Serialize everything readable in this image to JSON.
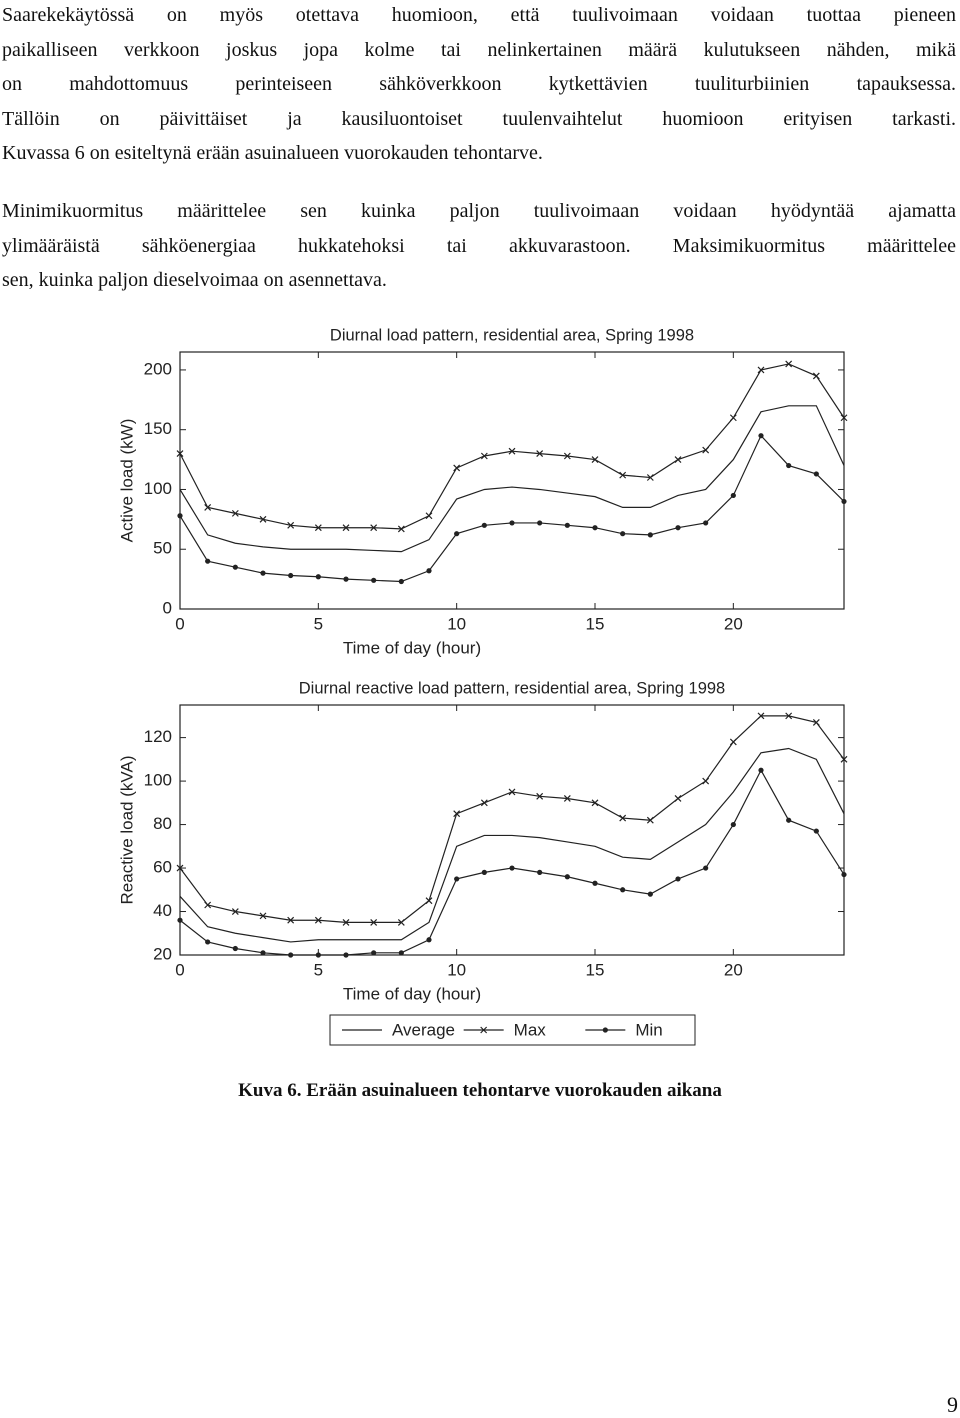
{
  "paragraphs": [
    [
      "Saarekekäytössä on myös otettava huomioon, että tuulivoimaan voidaan tuottaa pieneen",
      "paikalliseen verkkoon joskus jopa kolme tai nelinkertainen määrä kulutukseen nähden, mikä",
      "on mahdottomuus perinteiseen sähköverkkoon kytkettävien tuuliturbiinien tapauksessa.",
      "Tällöin on päivittäiset ja kausiluontoiset tuulenvaihtelut huomioon erityisen tarkasti.",
      "Kuvassa 6 on esiteltynä erään asuinalueen vuorokauden tehontarve."
    ],
    [
      "Minimikuormitus määrittelee sen kuinka paljon tuulivoimaan voidaan hyödyntää ajamatta",
      "ylimääräistä sähköenergiaa hukkatehoksi tai akkuvarastoon. Maksimikuormitus määrittelee",
      "sen, kuinka paljon dieselvoimaa on asennettava."
    ]
  ],
  "chart_data": [
    {
      "type": "line",
      "title": "Diurnal load pattern, residential area, Spring 1998",
      "x_label": "Time of day (hour)",
      "y_label": "Active load (kW)",
      "x": [
        0,
        1,
        2,
        3,
        4,
        5,
        6,
        7,
        8,
        9,
        10,
        11,
        12,
        13,
        14,
        15,
        16,
        17,
        18,
        19,
        20,
        21,
        22,
        23,
        24
      ],
      "xlim": [
        0,
        24
      ],
      "xticks": [
        0,
        5,
        10,
        15,
        20
      ],
      "ylim": [
        0,
        215
      ],
      "yticks": [
        0,
        50,
        100,
        150,
        200
      ],
      "series": [
        {
          "color": "#222222",
          "marker": "none",
          "values": [
            100,
            62,
            55,
            52,
            50,
            50,
            50,
            49,
            48,
            58,
            92,
            100,
            102,
            100,
            97,
            94,
            85,
            85,
            95,
            100,
            125,
            165,
            170,
            170,
            120
          ]
        },
        {
          "color": "#222222",
          "marker": "x",
          "values": [
            130,
            85,
            80,
            75,
            70,
            68,
            68,
            68,
            67,
            78,
            118,
            128,
            132,
            130,
            128,
            125,
            112,
            110,
            125,
            133,
            160,
            200,
            205,
            195,
            160
          ]
        },
        {
          "color": "#222222",
          "marker": "dot",
          "values": [
            78,
            40,
            35,
            30,
            28,
            27,
            25,
            24,
            23,
            32,
            63,
            70,
            72,
            72,
            70,
            68,
            63,
            62,
            68,
            72,
            95,
            145,
            120,
            113,
            90
          ]
        }
      ]
    },
    {
      "type": "line",
      "title": "Diurnal reactive load pattern, residential area, Spring 1998",
      "x_label": "Time of day (hour)",
      "y_label": "Reactive load (kVA)",
      "x": [
        0,
        1,
        2,
        3,
        4,
        5,
        6,
        7,
        8,
        9,
        10,
        11,
        12,
        13,
        14,
        15,
        16,
        17,
        18,
        19,
        20,
        21,
        22,
        23,
        24
      ],
      "xlim": [
        0,
        24
      ],
      "xticks": [
        0,
        5,
        10,
        15,
        20
      ],
      "ylim": [
        20,
        135
      ],
      "yticks": [
        20,
        40,
        60,
        80,
        100,
        120
      ],
      "legend": "bottom",
      "series": [
        {
          "name": "Average",
          "color": "#222222",
          "marker": "none",
          "values": [
            47,
            33,
            30,
            28,
            26,
            27,
            27,
            27,
            27,
            35,
            70,
            75,
            75,
            74,
            72,
            70,
            65,
            64,
            72,
            80,
            95,
            113,
            115,
            110,
            85
          ]
        },
        {
          "name": "Max",
          "color": "#222222",
          "marker": "x",
          "values": [
            60,
            43,
            40,
            38,
            36,
            36,
            35,
            35,
            35,
            45,
            85,
            90,
            95,
            93,
            92,
            90,
            83,
            82,
            92,
            100,
            118,
            130,
            130,
            127,
            110
          ]
        },
        {
          "name": "Min",
          "color": "#222222",
          "marker": "dot",
          "values": [
            36,
            26,
            23,
            21,
            20,
            20,
            20,
            21,
            21,
            27,
            55,
            58,
            60,
            58,
            56,
            53,
            50,
            48,
            55,
            60,
            80,
            105,
            82,
            77,
            57
          ]
        }
      ]
    }
  ],
  "caption": "Kuva 6. Erään asuinalueen tehontarve vuorokauden aikana",
  "page_number": "9"
}
